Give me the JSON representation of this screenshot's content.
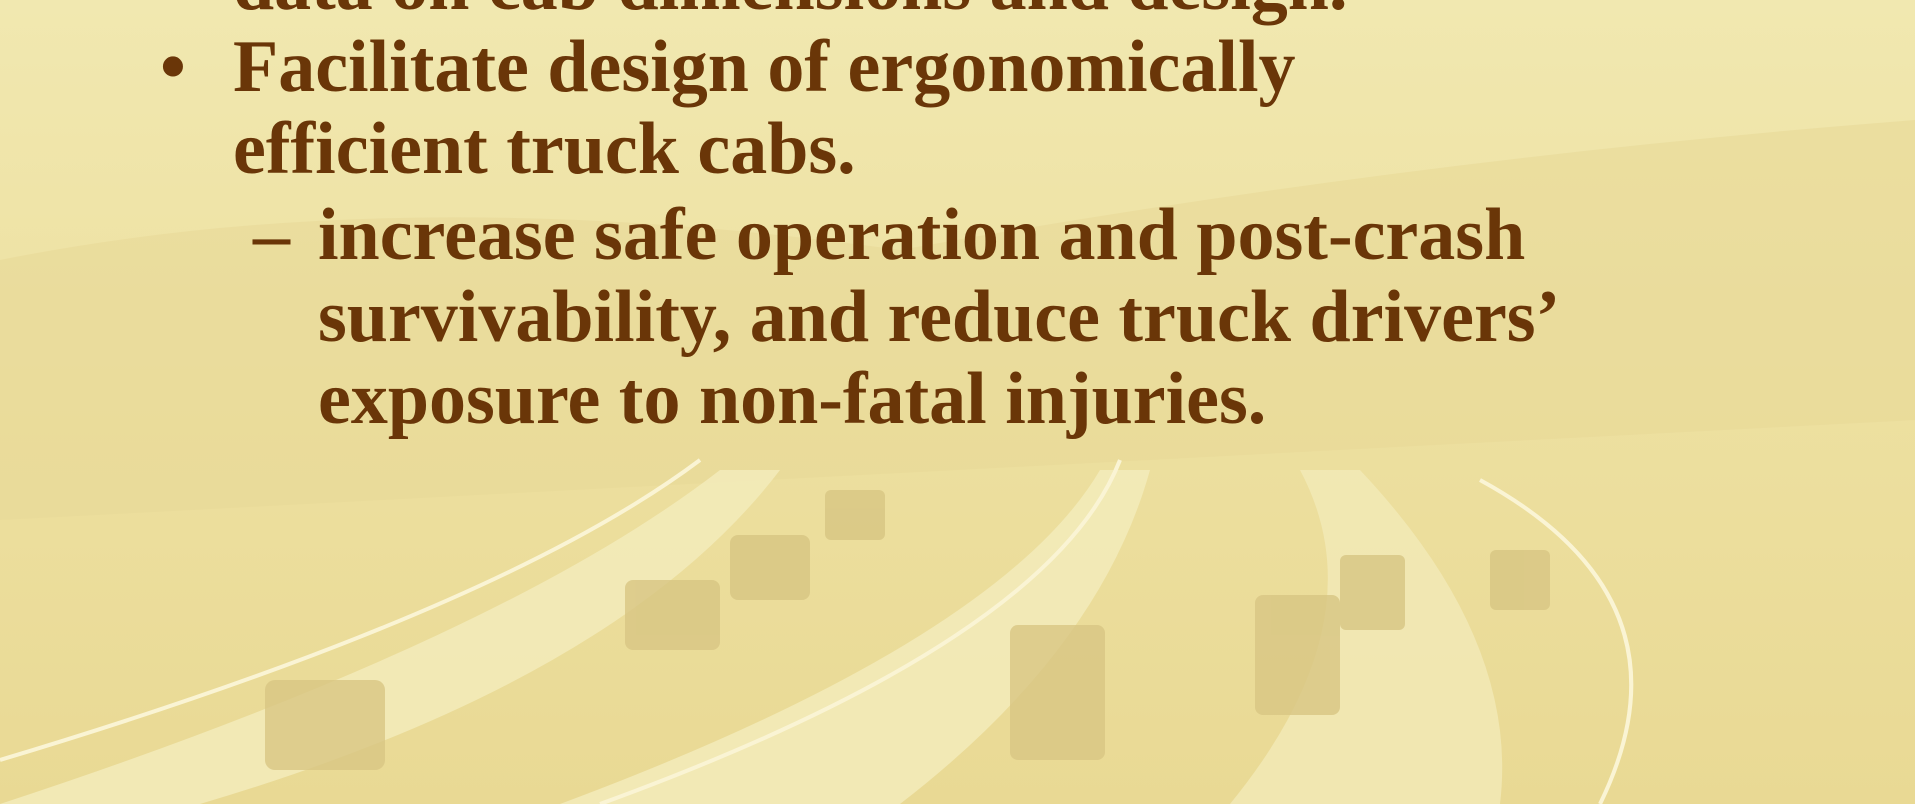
{
  "slide": {
    "bullets": [
      {
        "marker": "•",
        "lines": [
          "data on cab dimensions and design."
        ]
      },
      {
        "marker": "•",
        "lines": [
          "Facilitate design of ergonomically",
          "efficient truck cabs."
        ]
      }
    ],
    "sub_bullets": [
      {
        "marker": "–",
        "lines": [
          "increase safe operation and post-crash",
          "survivability, and reduce truck drivers’",
          "exposure to non-fatal injuries."
        ]
      }
    ]
  }
}
